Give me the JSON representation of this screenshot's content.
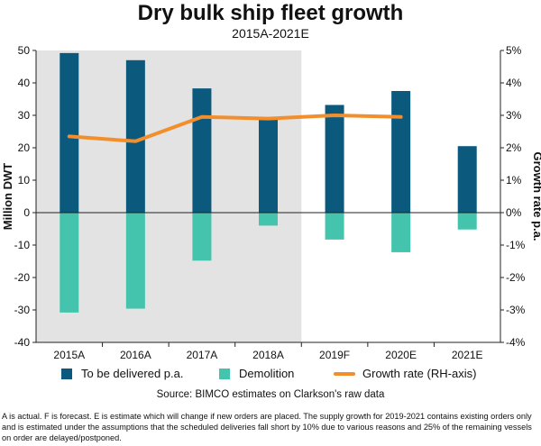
{
  "chart_data": {
    "type": "bar",
    "title": "Dry bulk ship fleet growth",
    "subtitle": "2015A-2021E",
    "categories": [
      "2015A",
      "2016A",
      "2017A",
      "2018A",
      "2019F",
      "2020E",
      "2021E"
    ],
    "series": [
      {
        "name": "To be delivered p.a.",
        "type": "bar",
        "axis": "left",
        "color": "#0b5a7e",
        "values": [
          49.2,
          47.0,
          38.3,
          29.0,
          33.2,
          37.5,
          20.5
        ]
      },
      {
        "name": "Demolition",
        "type": "bar",
        "axis": "left",
        "color": "#44c4ac",
        "values": [
          -30.8,
          -29.6,
          -14.8,
          -4.0,
          -8.3,
          -12.2,
          -5.2
        ]
      },
      {
        "name": "Growth rate (RH-axis)",
        "type": "line",
        "axis": "right",
        "color": "#f28f2c",
        "values": [
          2.35,
          2.2,
          2.95,
          2.9,
          3.0,
          2.95,
          null
        ]
      }
    ],
    "shaded_categories": [
      "2015A",
      "2016A",
      "2017A",
      "2018A"
    ],
    "ylabel": "Million DWT",
    "y2label": "Growth rate p.a.",
    "ylim": [
      -40,
      50
    ],
    "y2lim": [
      -4,
      5
    ],
    "yticks": [
      "50",
      "40",
      "30",
      "20",
      "10",
      "0",
      "-10",
      "-20",
      "-30",
      "-40"
    ],
    "y2ticks": [
      "5%",
      "4%",
      "3%",
      "2%",
      "1%",
      "0%",
      "-1%",
      "-2%",
      "-3%",
      "-4%"
    ],
    "legend": "bottom"
  },
  "source": "Source: BIMCO estimates on Clarkson's raw data",
  "footnote": "A is actual. F is forecast. E is estimate which will change if new orders are placed. The supply growth for 2019-2021 contains existing orders only and is estimated under the assumptions that the scheduled deliveries fall short by 10% due to various reasons and 25% of the remaining vessels on order are delayed/postponed."
}
